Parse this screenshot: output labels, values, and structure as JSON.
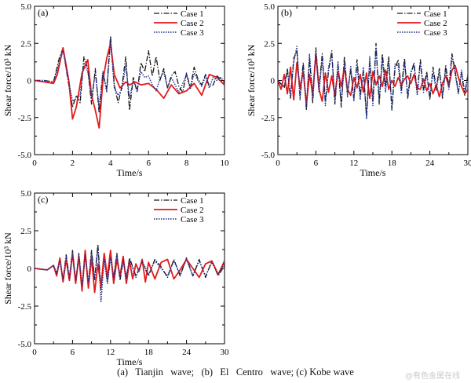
{
  "caption": "(a)   Tianjin   wave;   (b)   El   Centro   wave; (c) Kobe wave",
  "watermark": "@有色金属在线",
  "legend_labels": [
    "Case 1",
    "Case 2",
    "Case 3"
  ],
  "colors": {
    "case1": "#1a1a1a",
    "case2": "#e41a1c",
    "case3": "#1a2b8c"
  },
  "chart_data": [
    {
      "panel": "(a)",
      "type": "line",
      "xlabel": "Time/s",
      "ylabel": "Shear force/10³ kN",
      "xlim": [
        0,
        10
      ],
      "ylim": [
        -5.0,
        5.0
      ],
      "xticks": [
        0,
        2,
        4,
        6,
        8,
        10
      ],
      "yticks": [
        -5.0,
        -2.5,
        0,
        2.5,
        5.0
      ],
      "legend": "top-right",
      "series": [
        {
          "name": "Case 1",
          "style": "dash-dot",
          "x": [
            0,
            0.5,
            1,
            1.3,
            1.5,
            1.7,
            2,
            2.2,
            2.4,
            2.6,
            2.8,
            3,
            3.2,
            3.4,
            3.6,
            3.8,
            4,
            4.2,
            4.4,
            4.6,
            4.8,
            5,
            5.2,
            5.4,
            5.6,
            5.8,
            6,
            6.2,
            6.4,
            6.6,
            6.8,
            7,
            7.2,
            7.4,
            7.6,
            7.8,
            8,
            8.2,
            8.4,
            8.6,
            8.8,
            9,
            9.2,
            9.4,
            9.6,
            9.8,
            10
          ],
          "y": [
            0,
            0,
            -0.1,
            1.5,
            2.2,
            0.5,
            -1.8,
            -1.0,
            -1.5,
            1.6,
            0.8,
            -1.6,
            0.8,
            -2.2,
            0.5,
            -0.6,
            3.0,
            -0.3,
            -1.5,
            -0.4,
            1.6,
            -2.0,
            0.2,
            -0.8,
            1.2,
            0.6,
            2.0,
            0.3,
            1.6,
            0.0,
            0.8,
            -0.5,
            0.3,
            0.6,
            -0.4,
            -0.8,
            0.5,
            -0.5,
            0.9,
            0.1,
            -0.3,
            0.4,
            -0.4,
            -0.3,
            0.3,
            0.1,
            -0.2
          ]
        },
        {
          "name": "Case 2",
          "style": "solid",
          "x": [
            0,
            0.5,
            1,
            1.2,
            1.5,
            1.8,
            2,
            2.2,
            2.5,
            2.8,
            3,
            3.2,
            3.4,
            3.6,
            3.8,
            4,
            4.2,
            4.5,
            4.8,
            5,
            5.3,
            5.6,
            6,
            6.4,
            6.8,
            7.2,
            7.6,
            8,
            8.4,
            8.8,
            9.2,
            9.6,
            10
          ],
          "y": [
            0,
            -0.1,
            -0.2,
            0.4,
            2.2,
            0.0,
            -2.6,
            -1.8,
            0.5,
            1.4,
            -1.0,
            -2.0,
            -3.2,
            0.0,
            1.5,
            2.5,
            0.4,
            -0.5,
            -0.1,
            -0.3,
            -0.1,
            -0.3,
            -0.2,
            -0.6,
            -1.2,
            -0.3,
            -0.9,
            -0.7,
            -0.2,
            -1.0,
            0.4,
            0.2,
            -0.3
          ]
        },
        {
          "name": "Case 3",
          "style": "dotted",
          "x": [
            0,
            0.5,
            1,
            1.3,
            1.5,
            1.7,
            2,
            2.2,
            2.4,
            2.6,
            2.8,
            3,
            3.2,
            3.4,
            3.6,
            3.8,
            4,
            4.2,
            4.4,
            4.6,
            4.8,
            5,
            5.2,
            5.4,
            5.6,
            5.8,
            6,
            6.2,
            6.4,
            6.6,
            6.8,
            7,
            7.2,
            7.4,
            7.6,
            7.8,
            8,
            8.2,
            8.4,
            8.6,
            8.8,
            9,
            9.2,
            9.4,
            9.6,
            9.8,
            10
          ],
          "y": [
            0,
            0,
            -0.1,
            1.2,
            2.0,
            0.6,
            -1.4,
            -1.2,
            -1.0,
            1.2,
            0.6,
            -1.2,
            0.5,
            -1.8,
            0.6,
            -0.8,
            2.7,
            -0.5,
            -1.0,
            -0.6,
            1.0,
            -1.2,
            0.0,
            -0.6,
            0.6,
            0.2,
            0.3,
            -0.3,
            -0.7,
            0.1,
            0.6,
            -0.5,
            0.2,
            -0.3,
            -0.8,
            -0.2,
            0.4,
            -0.6,
            0.5,
            0.0,
            -0.4,
            0.3,
            -0.5,
            0.2,
            0.0,
            0.2,
            -0.1
          ]
        }
      ]
    },
    {
      "panel": "(b)",
      "type": "line",
      "xlabel": "Time/s",
      "ylabel": "Shear force/10³ kN",
      "xlim": [
        0,
        30
      ],
      "ylim": [
        -5.0,
        5.0
      ],
      "xticks": [
        0,
        6,
        12,
        18,
        24,
        30
      ],
      "yticks": [
        -5.0,
        -2.5,
        0,
        2.5,
        5.0
      ],
      "legend": "top-right",
      "series": [
        {
          "name": "Case 1",
          "style": "dash-dot",
          "x": [
            0,
            1,
            1.5,
            2,
            2.5,
            3,
            3.5,
            4,
            4.5,
            5,
            5.5,
            6,
            6.5,
            7,
            7.5,
            8,
            8.5,
            9,
            9.5,
            10,
            10.5,
            11,
            11.5,
            12,
            12.5,
            13,
            13.5,
            14,
            14.5,
            15,
            15.5,
            16,
            16.5,
            17,
            17.5,
            18,
            18.5,
            19,
            19.5,
            20,
            20.5,
            21,
            21.5,
            22,
            22.5,
            23,
            23.5,
            24,
            24.5,
            25,
            25.5,
            26,
            26.5,
            27,
            27.5,
            28,
            28.5,
            29,
            29.5,
            30
          ],
          "y": [
            0,
            -0.5,
            0.8,
            -1.2,
            1.5,
            2.0,
            -1.0,
            1.2,
            -2.0,
            1.5,
            -1.5,
            2.2,
            -0.5,
            1.8,
            -1.4,
            0.6,
            2.0,
            -1.6,
            1.0,
            -1.8,
            1.6,
            -0.8,
            0.7,
            -1.2,
            1.4,
            -1.0,
            0.6,
            -2.4,
            1.2,
            -1.4,
            2.5,
            -1.6,
            1.8,
            -0.4,
            1.6,
            -2.0,
            0.8,
            1.4,
            -0.6,
            1.5,
            -1.2,
            0.4,
            1.2,
            -0.8,
            1.4,
            -0.6,
            0.6,
            -1.3,
            0.9,
            -0.5,
            0.8,
            -1.2,
            1.0,
            -0.4,
            1.8,
            0.6,
            -0.8,
            0.5,
            -1.0,
            0.3
          ]
        },
        {
          "name": "Case 2",
          "style": "solid",
          "x": [
            0,
            0.5,
            1,
            1.5,
            2,
            2.5,
            3,
            3.5,
            4,
            4.5,
            5,
            5.5,
            6,
            6.5,
            7,
            7.5,
            8,
            8.5,
            9,
            9.5,
            10,
            10.5,
            11,
            11.5,
            12,
            12.5,
            13,
            13.5,
            14,
            14.5,
            15,
            15.5,
            16,
            16.5,
            17,
            17.5,
            18,
            18.5,
            19,
            19.5,
            20,
            20.5,
            21,
            21.5,
            22,
            22.5,
            23,
            23.5,
            24,
            24.5,
            25,
            25.5,
            26,
            26.5,
            27,
            27.5,
            28,
            28.5,
            29,
            29.5,
            30
          ],
          "y": [
            0,
            -0.6,
            0.4,
            -0.9,
            0.9,
            -1.3,
            1.2,
            -0.5,
            0.6,
            -1.6,
            0.4,
            -0.9,
            1.8,
            -0.6,
            -1.4,
            0.5,
            -0.8,
            0.3,
            -1.0,
            0.6,
            -0.4,
            0.9,
            -0.6,
            -1.0,
            0.2,
            -0.5,
            0.4,
            -0.8,
            0.5,
            -1.2,
            0.6,
            -0.3,
            0.3,
            -0.4,
            0.7,
            -0.6,
            0.0,
            -0.4,
            0.2,
            -0.3,
            0.1,
            0.3,
            -0.2,
            0.4,
            -0.5,
            -0.6,
            0.1,
            -0.7,
            -0.2,
            -0.9,
            -0.3,
            -1.1,
            -0.2,
            0.3,
            -0.4,
            0.7,
            1.0,
            0.2,
            -0.4,
            -0.9,
            -0.6
          ]
        },
        {
          "name": "Case 3",
          "style": "dotted",
          "x": [
            0,
            1,
            1.5,
            2,
            2.5,
            3,
            3.5,
            4,
            4.5,
            5,
            5.5,
            6,
            6.5,
            7,
            7.5,
            8,
            8.5,
            9,
            9.5,
            10,
            10.5,
            11,
            11.5,
            12,
            12.5,
            13,
            13.5,
            14,
            14.5,
            15,
            15.5,
            16,
            16.5,
            17,
            17.5,
            18,
            18.5,
            19,
            19.5,
            20,
            20.5,
            21,
            21.5,
            22,
            22.5,
            23,
            23.5,
            24,
            24.5,
            25,
            25.5,
            26,
            26.5,
            27,
            27.5,
            28,
            28.5,
            29,
            29.5,
            30
          ],
          "y": [
            0,
            -0.4,
            0.6,
            -1.0,
            1.2,
            2.3,
            -1.3,
            1.0,
            -1.8,
            1.8,
            -1.2,
            1.9,
            -0.8,
            1.5,
            -1.7,
            0.9,
            1.8,
            -1.4,
            1.3,
            -1.6,
            1.2,
            -1.1,
            1.0,
            -1.4,
            1.1,
            -1.3,
            0.9,
            -2.6,
            1.6,
            -1.7,
            2.2,
            -1.3,
            1.4,
            -0.8,
            1.3,
            -1.8,
            1.1,
            1.0,
            -0.9,
            1.2,
            -1.0,
            0.6,
            1.0,
            -1.0,
            1.2,
            -0.8,
            0.4,
            -1.1,
            0.6,
            -0.7,
            0.6,
            -1.0,
            0.8,
            -0.6,
            1.6,
            0.4,
            -0.9,
            0.7,
            -0.8,
            0.4
          ]
        }
      ]
    },
    {
      "panel": "(c)",
      "type": "line",
      "xlabel": "Time/s",
      "ylabel": "Shear force/10³ kN",
      "xlim": [
        0,
        30
      ],
      "ylim": [
        -5.0,
        5.0
      ],
      "xticks": [
        0,
        6,
        12,
        18,
        24,
        30
      ],
      "yticks": [
        -5.0,
        -2.5,
        0,
        2.5,
        5.0
      ],
      "legend": "top-right",
      "series": [
        {
          "name": "Case 1",
          "style": "dash-dot",
          "x": [
            0,
            2,
            3,
            3.5,
            4,
            4.5,
            5,
            5.5,
            6,
            6.5,
            7,
            7.5,
            8,
            8.5,
            9,
            9.5,
            10,
            10.5,
            11,
            11.5,
            12,
            12.5,
            13,
            13.5,
            14,
            14.5,
            15,
            16,
            17,
            18,
            19,
            20,
            21,
            22,
            23,
            24,
            25,
            26,
            27,
            28,
            29,
            30
          ],
          "y": [
            0,
            -0.1,
            0.2,
            -0.3,
            0.6,
            -0.8,
            0.9,
            -0.6,
            1.2,
            -0.9,
            1.0,
            -1.3,
            0.8,
            -1.0,
            1.2,
            -0.7,
            1.6,
            -1.4,
            0.9,
            -0.9,
            0.8,
            -0.6,
            1.0,
            -0.8,
            0.5,
            -0.6,
            0.7,
            -0.5,
            0.4,
            -0.5,
            0.6,
            0.1,
            -0.6,
            0.6,
            -0.5,
            0.7,
            -0.5,
            0.6,
            -0.6,
            0.5,
            -0.5,
            0.2
          ]
        },
        {
          "name": "Case 2",
          "style": "solid",
          "x": [
            0,
            2,
            3,
            3.5,
            4,
            4.5,
            5,
            5.5,
            6,
            6.5,
            7,
            7.5,
            8,
            8.5,
            9,
            9.5,
            10,
            10.5,
            11,
            11.5,
            12,
            12.5,
            13,
            13.5,
            14,
            14.5,
            15,
            15.5,
            16,
            16.5,
            17,
            17.5,
            18,
            19,
            20,
            21,
            22,
            23,
            24,
            25,
            26,
            27,
            28,
            29,
            30
          ],
          "y": [
            0,
            -0.1,
            0.2,
            -0.5,
            0.7,
            -0.9,
            0.6,
            -0.8,
            1.0,
            -1.0,
            0.8,
            -1.5,
            1.2,
            -1.3,
            0.7,
            -1.6,
            0.3,
            -1.2,
            1.0,
            -0.6,
            1.2,
            -1.0,
            0.6,
            -0.5,
            0.8,
            -1.0,
            0.5,
            -0.7,
            0.3,
            -0.2,
            0.6,
            -0.9,
            0.4,
            -0.7,
            0.4,
            0.6,
            -0.7,
            -0.1,
            0.6,
            0.0,
            -0.6,
            0.3,
            0.5,
            -0.4,
            0.5
          ]
        },
        {
          "name": "Case 3",
          "style": "dotted",
          "x": [
            0,
            2,
            3,
            3.5,
            4,
            4.5,
            5,
            5.5,
            6,
            6.5,
            7,
            7.5,
            8,
            8.5,
            9,
            9.5,
            10,
            10.5,
            11,
            11.5,
            12,
            12.5,
            13,
            13.5,
            14,
            14.5,
            15,
            16,
            17,
            18,
            19,
            20,
            21,
            22,
            23,
            24,
            25,
            26,
            27,
            28,
            29,
            30
          ],
          "y": [
            0,
            -0.1,
            0.2,
            -0.4,
            0.5,
            -0.7,
            0.8,
            -0.7,
            1.0,
            -0.8,
            0.9,
            -1.1,
            0.9,
            -0.9,
            1.1,
            -0.8,
            1.4,
            -2.2,
            0.6,
            -1.0,
            0.7,
            -0.7,
            0.9,
            -0.6,
            0.6,
            -0.7,
            0.6,
            -0.6,
            0.5,
            -0.4,
            0.5,
            0.0,
            -0.5,
            0.5,
            -0.4,
            0.6,
            -0.5,
            0.5,
            -0.5,
            0.4,
            -0.4,
            0.3
          ]
        }
      ]
    }
  ]
}
